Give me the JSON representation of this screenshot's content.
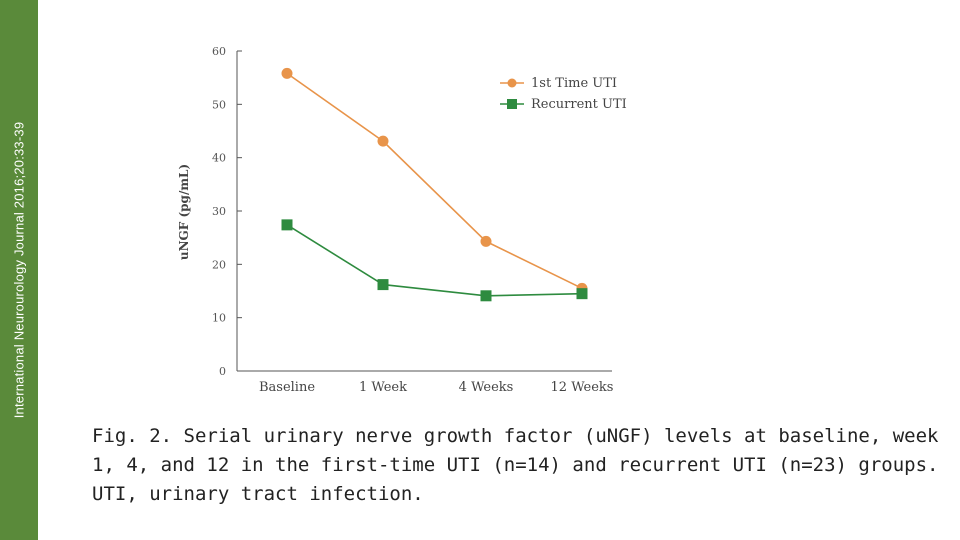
{
  "sidebar": {
    "journal_text": "International Neurourology Journal 2016;20:33-39"
  },
  "caption": {
    "lines": [
      "Fig. 2. Serial urinary nerve growth factor (uNGF) levels at baseline, week",
      "1, 4, and 12 in the first-time UTI (n=14) and recurrent UTI (n=23) groups.",
      "UTI, urinary tract infection."
    ]
  },
  "colors": {
    "sidebar": "#5a8a3a",
    "series1": "#e8944a",
    "series2": "#2e8b3f",
    "axis": "#555555"
  },
  "chart_data": {
    "type": "line",
    "title": "",
    "xlabel": "",
    "ylabel": "uNGF (pg/mL)",
    "ylim": [
      0,
      60
    ],
    "yticks": [
      "0",
      "10",
      "20",
      "30",
      "40",
      "50",
      "60"
    ],
    "categories": [
      "Baseline",
      "1 Week",
      "4 Weeks",
      "12 Weeks"
    ],
    "legend_position": "top-right",
    "series": [
      {
        "name": "1st Time UTI",
        "values": [
          55.8,
          43.1,
          24.3,
          15.5
        ],
        "marker": "circle"
      },
      {
        "name": "Recurrent UTI",
        "values": [
          27.4,
          16.2,
          14.1,
          14.5
        ],
        "marker": "square"
      }
    ]
  }
}
